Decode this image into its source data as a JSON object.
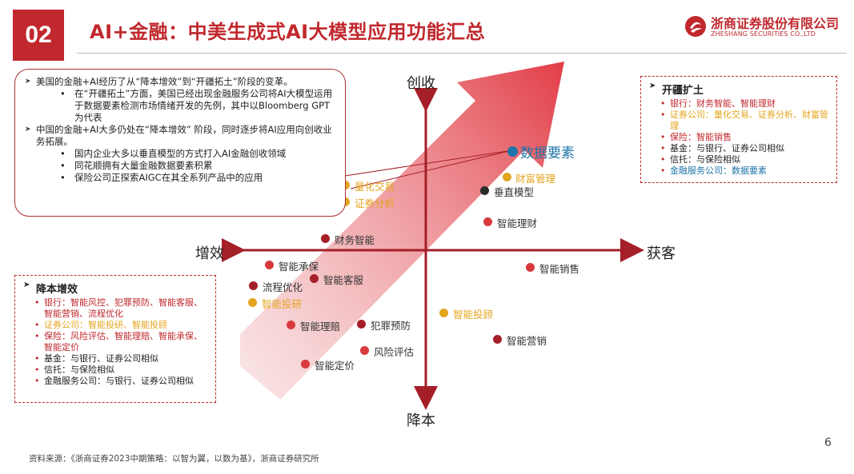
{
  "badge": "02",
  "title": "AI+金融：中美生成式AI大模型应用功能汇总",
  "logo": {
    "cn": "浙商证券股份有限公司",
    "en": "ZHESHANG SECURITIES CO.,LTD"
  },
  "colors": {
    "brand": "#c0282d",
    "dark": "#2b2b2b",
    "gold": "#e3a51e",
    "blue": "#1f74a8"
  },
  "left_box": {
    "p1": "美国的金融+AI经历了从“降本增效”到“开疆拓土”阶段的变革。",
    "p1_sub": "在“开疆拓土”方面，美国已经出现金融服务公司将AI大模型运用于数据要素检测市场情绪开发的先例，其中以Bloomberg GPT为代表",
    "p2": "中国的金融+AI大多仍处在“降本增效” 阶段，同时逐步将AI应用向创收业务拓展。",
    "p2_sub": [
      "国内企业大多以垂直模型的方式打入AI金融创收领域",
      "同花顺拥有大量金融数据要素积累",
      "保险公司正探索AIGC在其全系列产品中的应用"
    ]
  },
  "right_box": {
    "title": "开疆扩土",
    "items": [
      {
        "text": "银行：财务智能、智能理财",
        "color": "red"
      },
      {
        "text": "证券公司：量化交易、证券分析、财富管理",
        "color": "gold"
      },
      {
        "text": "保险：智能销售",
        "color": "red"
      },
      {
        "text": "基金：与银行、证券公司相似",
        "color": "dark"
      },
      {
        "text": "信托：与保险相似",
        "color": "dark"
      },
      {
        "text": "金融服务公司：数据要素",
        "color": "blue"
      }
    ]
  },
  "bottom_box": {
    "title": "降本增效",
    "items": [
      {
        "text": "银行：智能风控、犯罪预防、智能客服、智能营销、流程优化",
        "color": "red"
      },
      {
        "text": "证券公司：智能投研、智能投顾",
        "color": "gold"
      },
      {
        "text": "保险：风险评估、智能理赔、智能承保、智能定价",
        "color": "red"
      },
      {
        "text": "基金：与银行、证券公司相似",
        "color": "dark"
      },
      {
        "text": "信托：与保险相似",
        "color": "dark"
      },
      {
        "text": "金融服务公司：与银行、证券公司相似",
        "color": "dark"
      }
    ]
  },
  "axes": {
    "top": "创收",
    "bottom": "降本",
    "left": "增效",
    "right": "获客"
  },
  "points": [
    {
      "label": "数据要素",
      "color": "blue",
      "big": true
    },
    {
      "label": "财富管理",
      "color": "gold"
    },
    {
      "label": "垂直模型",
      "color": "dark"
    },
    {
      "label": "量化交易",
      "color": "gold"
    },
    {
      "label": "证券分析",
      "color": "gold"
    },
    {
      "label": "智能理财",
      "color": "red"
    },
    {
      "label": "财务智能",
      "color": "darkred"
    },
    {
      "label": "智能承保",
      "color": "red"
    },
    {
      "label": "流程优化",
      "color": "darkred"
    },
    {
      "label": "智能客服",
      "color": "darkred"
    },
    {
      "label": "智能销售",
      "color": "red"
    },
    {
      "label": "智能投研",
      "color": "gold"
    },
    {
      "label": "智能投顾",
      "color": "gold"
    },
    {
      "label": "智能理赔",
      "color": "red"
    },
    {
      "label": "犯罪预防",
      "color": "darkred"
    },
    {
      "label": "智能营销",
      "color": "darkred"
    },
    {
      "label": "风险评估",
      "color": "red"
    },
    {
      "label": "智能定价",
      "color": "red"
    }
  ],
  "source": "资料来源：《浙商证券2023中期策略：以智为翼，以数为基》，浙商证券研究所",
  "page_number": "6"
}
